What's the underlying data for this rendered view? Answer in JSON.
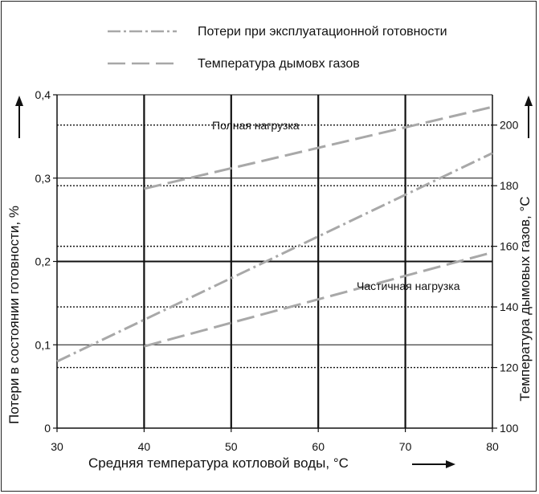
{
  "chart_data": {
    "type": "line",
    "xlabel": "Средняя температура котловой воды, °C",
    "ylabel_left": "Потери в состоянии готовности, %",
    "ylabel_right": "Температура дымовых газов, °C",
    "x_ticks": [
      "30",
      "40",
      "50",
      "60",
      "70",
      "80"
    ],
    "y_left_ticks": [
      "0",
      "0,1",
      "0,2",
      "0,3",
      "0,4"
    ],
    "y_right_ticks": [
      "100",
      "120",
      "140",
      "160",
      "180",
      "200"
    ],
    "xlim": [
      30,
      80
    ],
    "ylim_left": [
      0,
      0.4
    ],
    "ylim_right": [
      100,
      210
    ],
    "legend": [
      {
        "label": "Потери при эксплуатационной готовности",
        "style": "dash-dot",
        "color": "#a8a8a8"
      },
      {
        "label": "Температура дымовх газов",
        "style": "dash",
        "color": "#a8a8a8"
      }
    ],
    "annotations": {
      "full_load": "Полная нагрузка",
      "partial_load": "Частичная нагрузка"
    },
    "series": [
      {
        "axis": "left",
        "style": "dash-dot",
        "x": [
          30,
          80
        ],
        "y": [
          0.08,
          0.33
        ]
      },
      {
        "axis": "right",
        "style": "dash",
        "name": "Полная нагрузка",
        "x": [
          40,
          80
        ],
        "y": [
          179,
          206
        ]
      },
      {
        "axis": "right",
        "style": "dash",
        "name": "Частичная нагрузка",
        "x": [
          40,
          80
        ],
        "y": [
          127,
          158
        ]
      }
    ],
    "grid": {
      "left_solid_y": [
        0.1,
        0.2,
        0.3,
        0.4
      ],
      "right_dotted_y": [
        120,
        140,
        160,
        180,
        200
      ],
      "vertical_x": [
        40,
        50,
        60,
        70
      ]
    }
  }
}
